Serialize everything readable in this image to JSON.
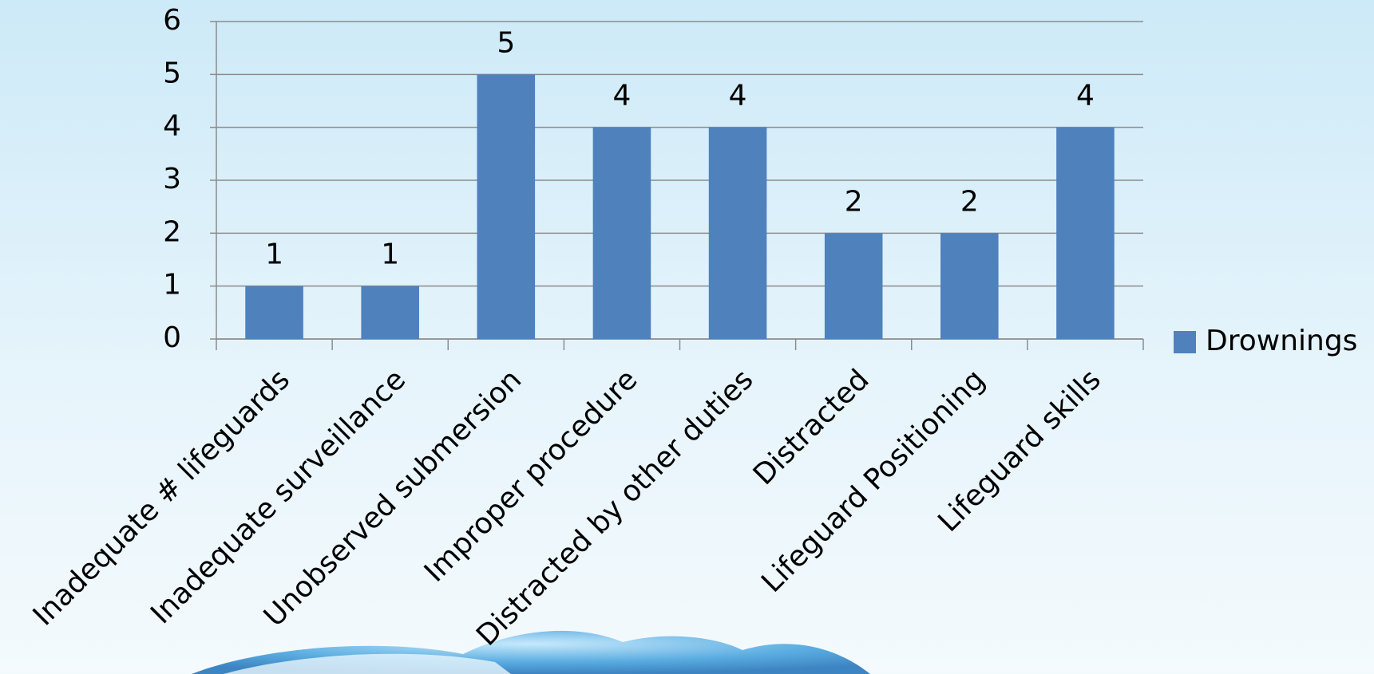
{
  "chart_data": {
    "type": "bar",
    "categories": [
      "Inadequate # lifeguards",
      "Inadequate surveillance",
      "Unobserved submersion",
      "Improper procedure",
      "Distracted by other duties",
      "Distracted",
      "Lifeguard Positioning",
      "Lifeguard skills"
    ],
    "series": [
      {
        "name": "Drownings",
        "color": "#4f81bd",
        "values": [
          1,
          1,
          5,
          4,
          4,
          2,
          2,
          4
        ]
      }
    ],
    "ylim": [
      0,
      6
    ],
    "yticks": [
      0,
      1,
      2,
      3,
      4,
      5,
      6
    ],
    "grid": true,
    "legend": "right",
    "data_labels": true
  }
}
